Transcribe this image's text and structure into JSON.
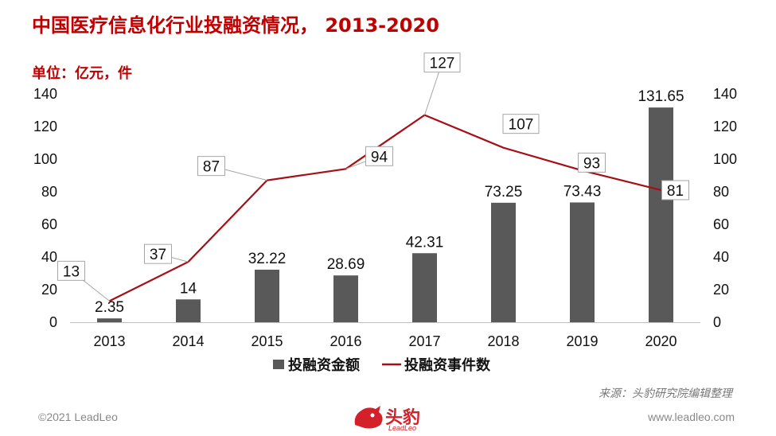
{
  "header": {
    "title": "中国医疗信息化行业投融资情况， 2013-2020",
    "unit": "单位：亿元，件"
  },
  "footer": {
    "source": "来源：头豹研究院编辑整理",
    "copyright": "©2021 LeadLeo",
    "website": "www.leadleo.com",
    "logo_text": "头豹",
    "logo_sub": "LeadLeo"
  },
  "colors": {
    "bar": "#595959",
    "line": "#a50f15",
    "title": "#c00000"
  },
  "chart_data": {
    "type": "bar",
    "categories": [
      "2013",
      "2014",
      "2015",
      "2016",
      "2017",
      "2018",
      "2019",
      "2020"
    ],
    "series": [
      {
        "name": "投融资金额",
        "type": "bar",
        "axis": "left",
        "values": [
          2.35,
          14,
          32.22,
          28.69,
          42.31,
          73.25,
          73.43,
          131.65
        ],
        "labels": [
          "2.35",
          "14",
          "32.22",
          "28.69",
          "42.31",
          "73.25",
          "73.43",
          "131.65"
        ]
      },
      {
        "name": "投融资事件数",
        "type": "line",
        "axis": "right",
        "values": [
          13,
          37,
          87,
          94,
          127,
          107,
          93,
          81
        ],
        "labels": [
          "13",
          "37",
          "87",
          "94",
          "127",
          "107",
          "93",
          "81"
        ]
      }
    ],
    "ylim": [
      0,
      140
    ],
    "y2lim": [
      0,
      140
    ],
    "yticks": [
      "0",
      "20",
      "40",
      "60",
      "80",
      "100",
      "120",
      "140"
    ],
    "y2ticks": [
      "0",
      "20",
      "40",
      "60",
      "80",
      "100",
      "120",
      "140"
    ],
    "legend_position": "bottom",
    "grid": false
  }
}
